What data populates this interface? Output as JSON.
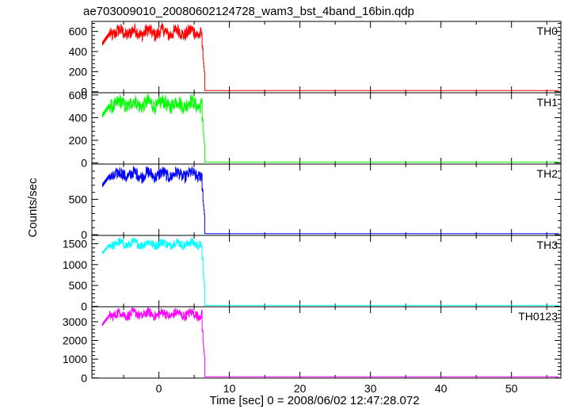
{
  "chart_data": {
    "type": "line",
    "title": "ae703009010_20080602124728_wam3_bst_4band_16bin.qdp",
    "xlabel": "Time [sec] 0 = 2008/06/02 12:47:28.072",
    "ylabel": "Counts/sec",
    "xlim": [
      -9.5,
      57
    ],
    "xticks": [
      0,
      10,
      20,
      30,
      40,
      50
    ],
    "grid": false,
    "legend": "none",
    "step_time_sec": 6.2,
    "panels": [
      {
        "name": "TH0",
        "color": "#ff0000",
        "ylim": [
          -10,
          700
        ],
        "yticks": [
          0,
          200,
          400,
          600
        ],
        "plateau_range": [
          450,
          680
        ],
        "mean_before_drop": 590,
        "onset_value": 480,
        "post_drop_value": 12
      },
      {
        "name": "TH1",
        "color": "#00ff00",
        "ylim": [
          -10,
          620
        ],
        "yticks": [
          0,
          200,
          400,
          600
        ],
        "plateau_range": [
          380,
          600
        ],
        "mean_before_drop": 520,
        "onset_value": 420,
        "post_drop_value": 8
      },
      {
        "name": "TH2",
        "color": "#0000ff",
        "ylim": [
          -10,
          1000
        ],
        "yticks": [
          0,
          500
        ],
        "plateau_range": [
          680,
          980
        ],
        "mean_before_drop": 850,
        "onset_value": 700,
        "post_drop_value": 15
      },
      {
        "name": "TH3",
        "color": "#00ffff",
        "ylim": [
          -10,
          1700
        ],
        "yticks": [
          0,
          500,
          1000,
          1500
        ],
        "plateau_range": [
          1280,
          1650
        ],
        "mean_before_drop": 1500,
        "onset_value": 1280,
        "post_drop_value": 25
      },
      {
        "name": "TH0123",
        "color": "#ff00ff",
        "ylim": [
          -10,
          3800
        ],
        "yticks": [
          0,
          1000,
          2000,
          3000
        ],
        "plateau_range": [
          2800,
          3700
        ],
        "mean_before_drop": 3400,
        "onset_value": 2850,
        "post_drop_value": 60
      }
    ]
  }
}
